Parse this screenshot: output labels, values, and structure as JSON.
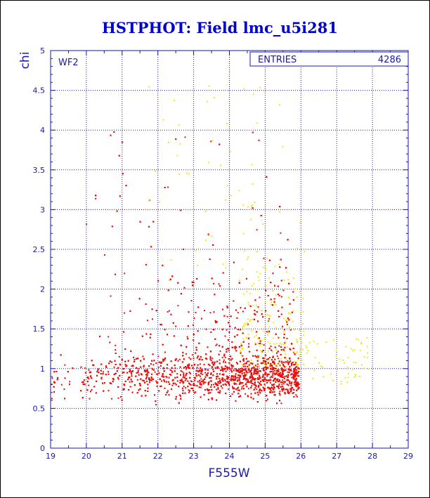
{
  "chart_data": {
    "type": "scatter",
    "title": "HSTPHOT: Field lmc_u5i281",
    "xlabel": "F555W",
    "ylabel": "chi",
    "xlim": [
      19,
      29
    ],
    "ylim": [
      0,
      5
    ],
    "xticks": [
      "19",
      "20",
      "21",
      "22",
      "23",
      "24",
      "25",
      "26",
      "27",
      "28",
      "29"
    ],
    "yticks": [
      "0",
      "0.5",
      "1",
      "1.5",
      "2",
      "2.5",
      "3",
      "3.5",
      "4",
      "4.5",
      "5"
    ],
    "grid": true,
    "grid_style": "dotted",
    "panel_label": "WF2",
    "stats_box": {
      "label": "ENTRIES",
      "value": "4286"
    },
    "series": [
      {
        "color": "#e8110c",
        "approx_count": 4000
      },
      {
        "color": "#f0e81a",
        "approx_count": 286
      }
    ],
    "colors": {
      "axis": "#1a1aa8",
      "grid": "#1a1aa8",
      "title": "#0000cc",
      "red_points": "#e8110c",
      "yellow_points": "#f0e81a"
    }
  }
}
